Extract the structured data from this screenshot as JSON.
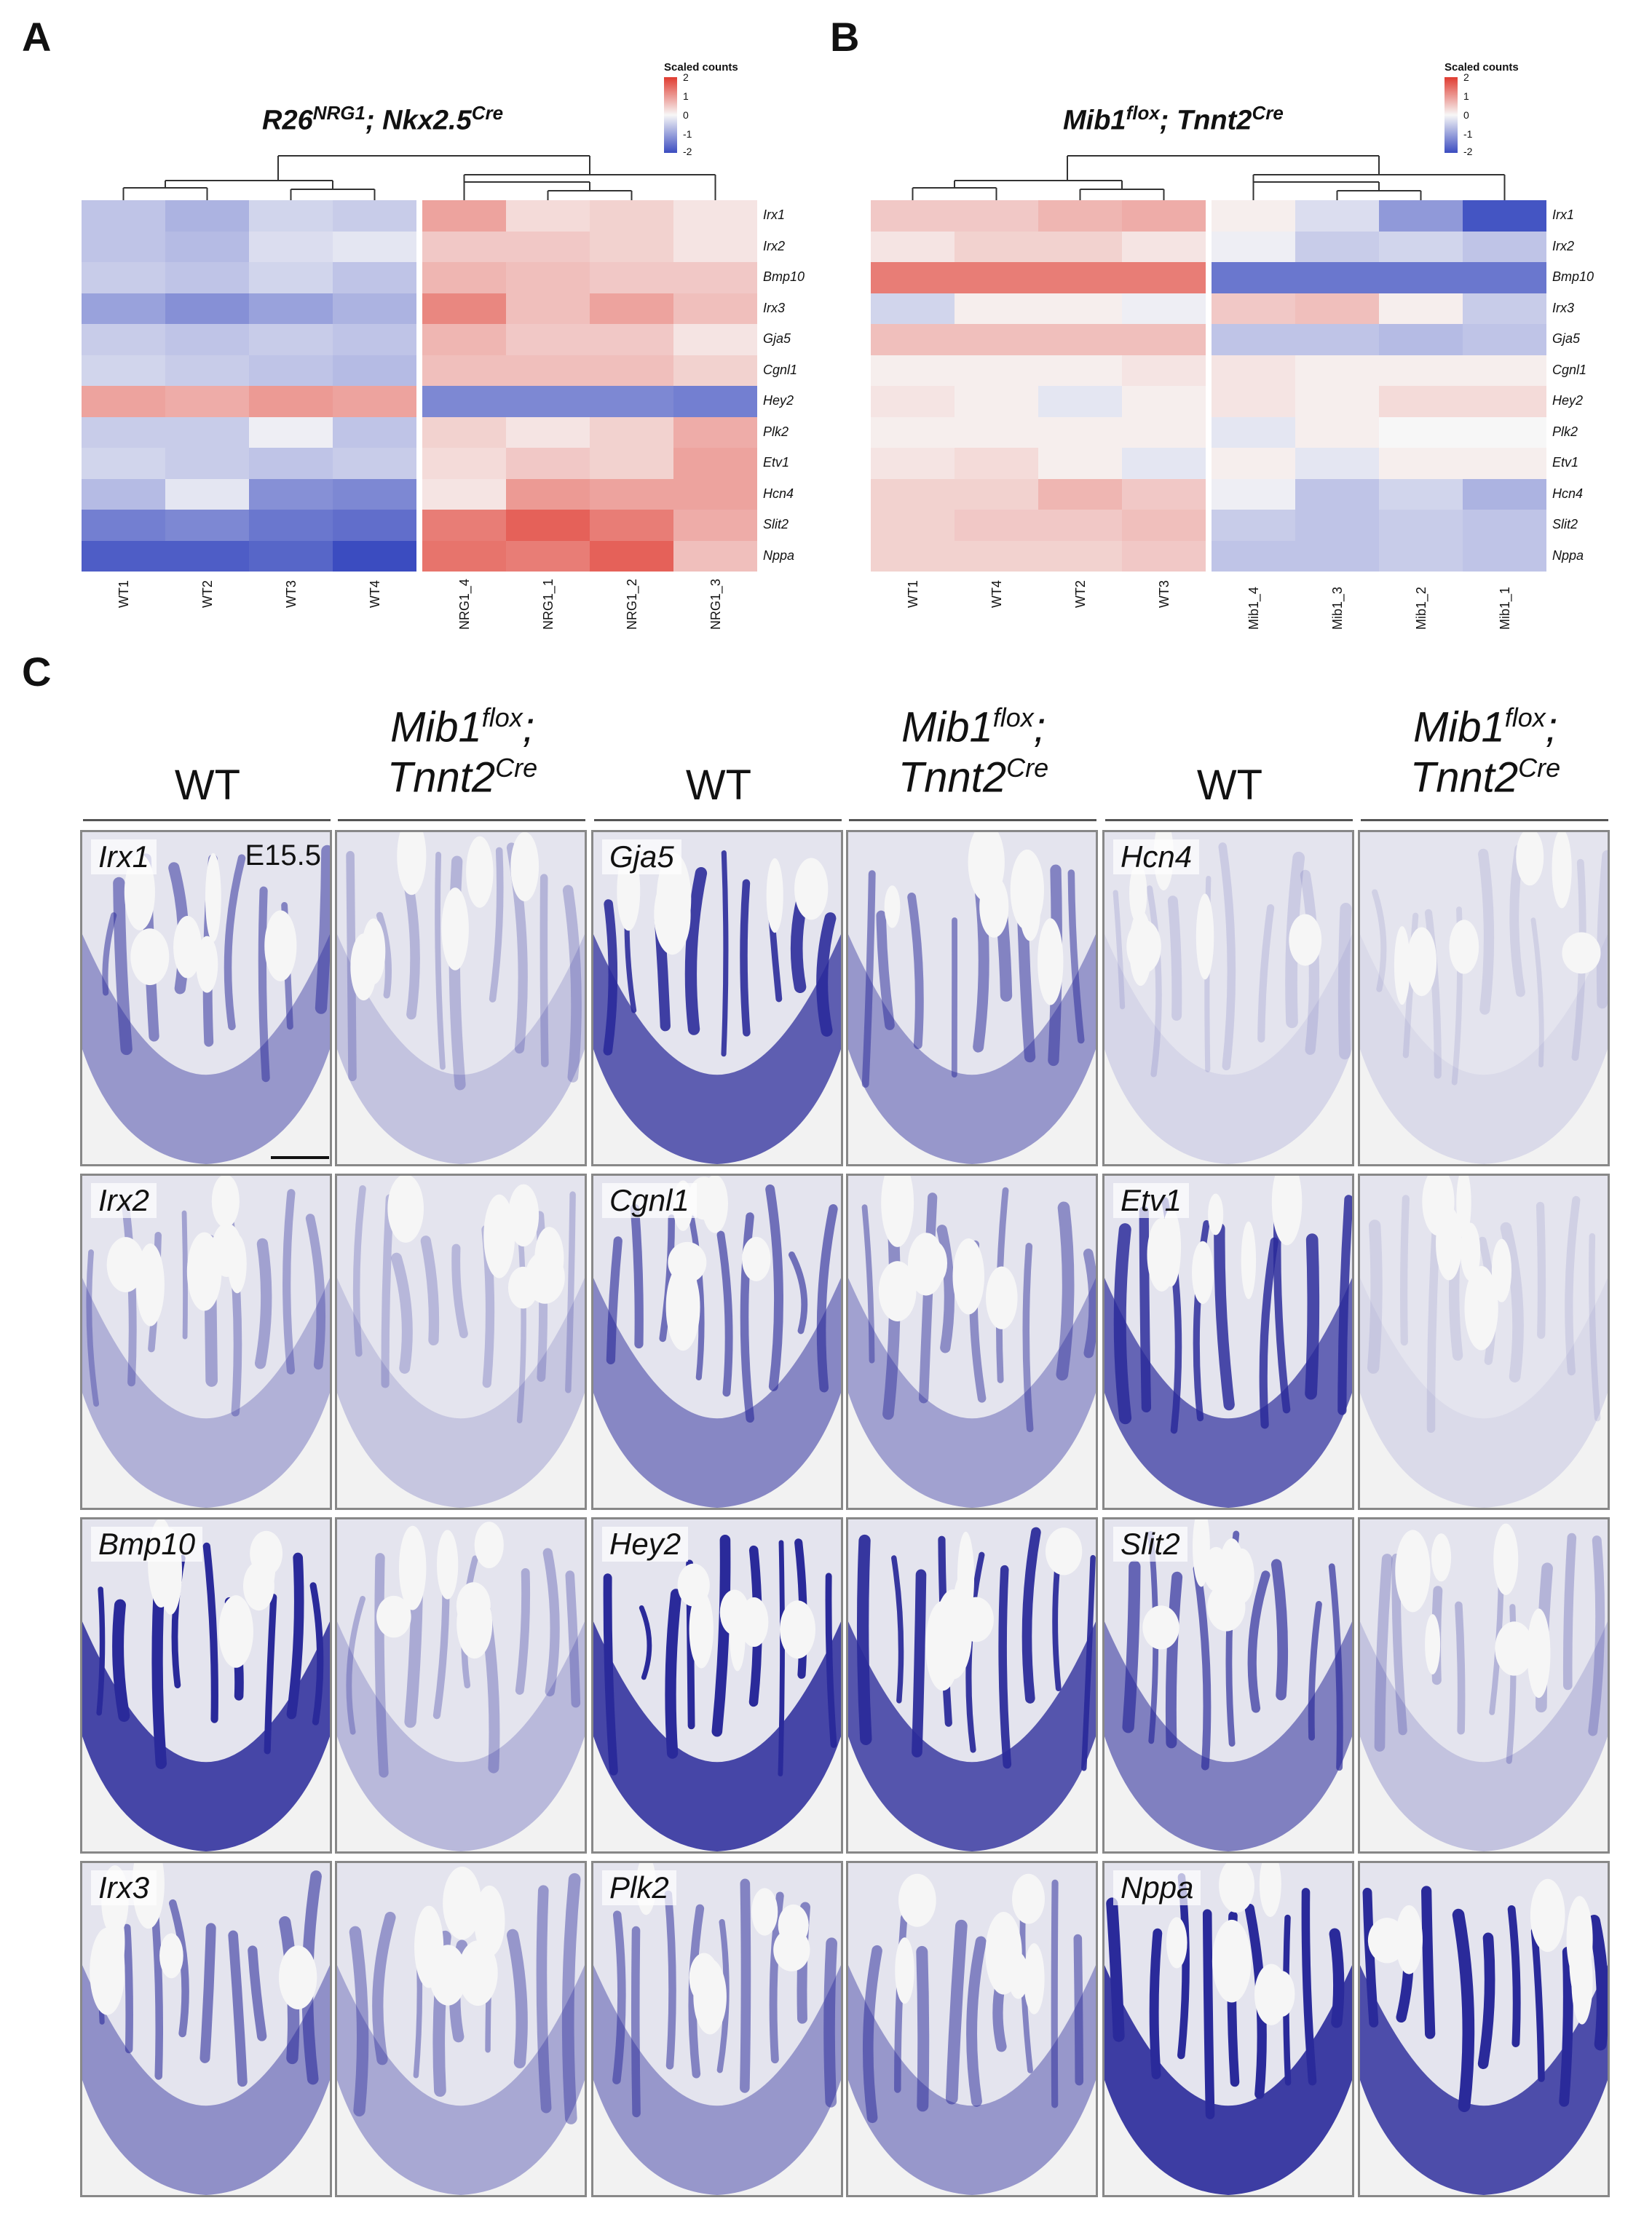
{
  "panels": {
    "A": {
      "letter": "A",
      "title_main1": "R26",
      "title_sup1": "NRG1",
      "title_main2": "; Nkx2.5",
      "title_sup2": "Cre",
      "legend": {
        "title": "Scaled counts",
        "ticks": [
          "2",
          "1",
          "0",
          "-1",
          "-2"
        ]
      }
    },
    "B": {
      "letter": "B",
      "title_main1": "Mib1",
      "title_sup1": "flox",
      "title_main2": "; Tnnt2",
      "title_sup2": "Cre",
      "legend": {
        "title": "Scaled counts",
        "ticks": [
          "2",
          "1",
          "0",
          "-1",
          "-2"
        ]
      }
    },
    "C": {
      "letter": "C"
    }
  },
  "chart_data": [
    {
      "type": "heatmap",
      "panel": "A",
      "rows": [
        "Irx1",
        "Irx2",
        "Bmp10",
        "Irx3",
        "Gja5",
        "Cgnl1",
        "Hey2",
        "Plk2",
        "Etv1",
        "Hcn4",
        "Slit2",
        "Nppa"
      ],
      "columns": [
        "WT1",
        "WT2",
        "WT3",
        "WT4",
        "NRG1_4",
        "NRG1_1",
        "NRG1_2",
        "NRG1_3"
      ],
      "values": [
        [
          -0.6,
          -0.8,
          -0.4,
          -0.5,
          0.9,
          0.3,
          0.4,
          0.2
        ],
        [
          -0.6,
          -0.7,
          -0.3,
          -0.2,
          0.5,
          0.5,
          0.4,
          0.2
        ],
        [
          -0.5,
          -0.6,
          -0.4,
          -0.6,
          0.7,
          0.6,
          0.5,
          0.5
        ],
        [
          -1.0,
          -1.2,
          -1.0,
          -0.8,
          1.2,
          0.6,
          0.9,
          0.6
        ],
        [
          -0.5,
          -0.6,
          -0.5,
          -0.6,
          0.7,
          0.5,
          0.5,
          0.2
        ],
        [
          -0.4,
          -0.5,
          -0.6,
          -0.7,
          0.6,
          0.6,
          0.6,
          0.4
        ],
        [
          0.9,
          0.8,
          1.0,
          0.9,
          -1.3,
          -1.3,
          -1.3,
          -1.4
        ],
        [
          -0.5,
          -0.5,
          -0.1,
          -0.6,
          0.4,
          0.2,
          0.4,
          0.8
        ],
        [
          -0.4,
          -0.5,
          -0.6,
          -0.5,
          0.3,
          0.5,
          0.4,
          0.9
        ],
        [
          -0.7,
          -0.2,
          -1.2,
          -1.3,
          0.2,
          1.0,
          0.9,
          0.9
        ],
        [
          -1.4,
          -1.3,
          -1.5,
          -1.6,
          1.3,
          1.6,
          1.3,
          0.8
        ],
        [
          -1.8,
          -1.8,
          -1.7,
          -2.0,
          1.4,
          1.3,
          1.6,
          0.6
        ]
      ],
      "color_scale": {
        "min": -2,
        "max": 2,
        "low": "#3b4cc0",
        "mid": "#f7f7f7",
        "high": "#e03c31"
      }
    },
    {
      "type": "heatmap",
      "panel": "B",
      "rows": [
        "Irx1",
        "Irx2",
        "Bmp10",
        "Irx3",
        "Gja5",
        "Cgnl1",
        "Hey2",
        "Plk2",
        "Etv1",
        "Hcn4",
        "Slit2",
        "Nppa"
      ],
      "columns": [
        "WT1",
        "WT4",
        "WT2",
        "WT3",
        "Mib1_4",
        "Mib1_3",
        "Mib1_2",
        "Mib1_1"
      ],
      "values": [
        [
          0.5,
          0.5,
          0.7,
          0.8,
          0.1,
          -0.3,
          -1.1,
          -1.9
        ],
        [
          0.2,
          0.4,
          0.4,
          0.2,
          -0.1,
          -0.5,
          -0.4,
          -0.6
        ],
        [
          1.3,
          1.3,
          1.3,
          1.3,
          -1.5,
          -1.5,
          -1.5,
          -1.5
        ],
        [
          -0.4,
          0.1,
          0.1,
          -0.1,
          0.5,
          0.6,
          0.1,
          -0.5
        ],
        [
          0.6,
          0.6,
          0.6,
          0.6,
          -0.6,
          -0.6,
          -0.7,
          -0.6
        ],
        [
          0.1,
          0.1,
          0.1,
          0.2,
          0.2,
          0.1,
          0.1,
          0.1
        ],
        [
          0.2,
          0.1,
          -0.2,
          0.1,
          0.2,
          0.1,
          0.3,
          0.3
        ],
        [
          0.1,
          0.1,
          0.1,
          0.1,
          -0.2,
          0.1,
          0.0,
          0.0
        ],
        [
          0.2,
          0.3,
          0.1,
          -0.2,
          0.1,
          -0.2,
          0.1,
          0.1
        ],
        [
          0.4,
          0.4,
          0.7,
          0.5,
          -0.1,
          -0.6,
          -0.4,
          -0.8
        ],
        [
          0.4,
          0.5,
          0.5,
          0.6,
          -0.5,
          -0.6,
          -0.5,
          -0.6
        ],
        [
          0.4,
          0.4,
          0.4,
          0.5,
          -0.6,
          -0.6,
          -0.5,
          -0.6
        ]
      ],
      "color_scale": {
        "min": -2,
        "max": 2,
        "low": "#3b4cc0",
        "mid": "#f7f7f7",
        "high": "#e03c31"
      }
    }
  ],
  "insitu": {
    "headers": [
      {
        "kind": "wt",
        "text": "WT"
      },
      {
        "kind": "mut",
        "line1": "Mib1",
        "sup1": "flox",
        "line1b": ";",
        "line2": "Tnnt2",
        "sup2": "Cre"
      },
      {
        "kind": "wt",
        "text": "WT"
      },
      {
        "kind": "mut",
        "line1": "Mib1",
        "sup1": "flox",
        "line1b": ";",
        "line2": "Tnnt2",
        "sup2": "Cre"
      },
      {
        "kind": "wt",
        "text": "WT"
      },
      {
        "kind": "mut",
        "line1": "Mib1",
        "sup1": "flox",
        "line1b": ";",
        "line2": "Tnnt2",
        "sup2": "Cre"
      }
    ],
    "stage": "E15.5",
    "genes": [
      [
        "Irx1",
        "Gja5",
        "Hcn4"
      ],
      [
        "Irx2",
        "Cgnl1",
        "Etv1"
      ],
      [
        "Bmp10",
        "Hey2",
        "Slit2"
      ],
      [
        "Irx3",
        "Plk2",
        "Nppa"
      ]
    ],
    "stain_intensity": [
      [
        [
          0.45,
          0.2
        ],
        [
          0.8,
          0.45
        ],
        [
          0.08,
          0.06
        ]
      ],
      [
        [
          0.3,
          0.18
        ],
        [
          0.55,
          0.4
        ],
        [
          0.75,
          0.06
        ]
      ],
      [
        [
          0.95,
          0.25
        ],
        [
          0.95,
          0.85
        ],
        [
          0.6,
          0.2
        ]
      ],
      [
        [
          0.5,
          0.35
        ],
        [
          0.45,
          0.45
        ],
        [
          1.0,
          0.9
        ]
      ]
    ],
    "stain_color": "#2a2a9a"
  }
}
